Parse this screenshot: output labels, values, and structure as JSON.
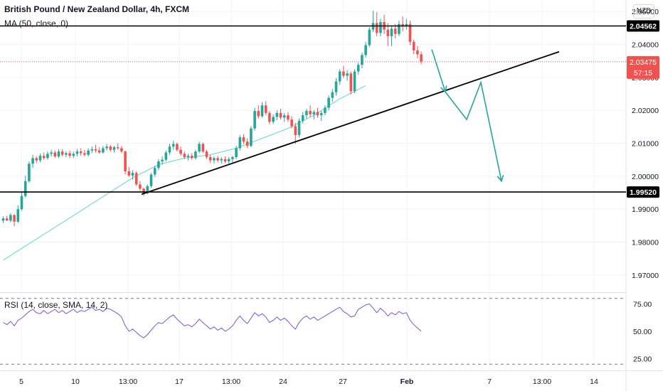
{
  "header": {
    "title": "British Pound / New Zealand Dollar, 4h, FXCM",
    "ma_label": "MA (50, close, 0)",
    "currency": "NZD"
  },
  "rsi": {
    "label": "RSI (14, close, SMA, 14, 2)",
    "ticks": [
      "75.00",
      "50.00",
      "25.00"
    ]
  },
  "chart_data": {
    "type": "candlestick",
    "price_axis": {
      "range": [
        1.965,
        2.0535
      ],
      "ticks": [
        "2.05000",
        "2.04000",
        "2.03000",
        "2.02000",
        "2.01000",
        "2.00000",
        "1.99000",
        "1.98000",
        "1.97000"
      ]
    },
    "time_axis": {
      "labels": [
        "5",
        "10",
        "13:00",
        "17",
        "13:00",
        "24",
        "27",
        "Feb",
        "7",
        "13:00",
        "14"
      ]
    },
    "horizontal_levels": [
      {
        "label": "2.04562",
        "value": 2.04562
      },
      {
        "label": "1.99520",
        "value": 1.9952
      }
    ],
    "current_price": {
      "label": "2.03475",
      "countdown": "57:15",
      "value": 2.03475
    },
    "trend_line": {
      "from": [
        0,
        1.9945
      ],
      "to": [
        130,
        2.0378
      ]
    },
    "projection_arrow": [
      [
        103,
        2.0385
      ],
      [
        107,
        2.0256
      ],
      [
        114,
        2.0172
      ],
      [
        118,
        2.0285
      ],
      [
        124,
        1.9985
      ]
    ],
    "ma_line": [
      [
        0,
        1.9745
      ],
      [
        7,
        1.9795
      ],
      [
        14,
        1.9845
      ],
      [
        21,
        1.9895
      ],
      [
        28,
        1.9945
      ],
      [
        35,
        1.9995
      ],
      [
        42,
        2.0035
      ],
      [
        49,
        2.0055
      ],
      [
        56,
        2.0065
      ],
      [
        63,
        2.0085
      ],
      [
        70,
        2.0115
      ],
      [
        77,
        2.0145
      ],
      [
        84,
        2.0185
      ],
      [
        91,
        2.0235
      ],
      [
        98,
        2.0275
      ]
    ],
    "candles": [
      [
        1.9865,
        1.9878,
        1.9858,
        1.9872
      ],
      [
        1.9872,
        1.988,
        1.9868,
        1.9865
      ],
      [
        1.9865,
        1.9888,
        1.986,
        1.9882
      ],
      [
        1.9882,
        1.9885,
        1.9848,
        1.9862
      ],
      [
        1.9862,
        1.9912,
        1.9858,
        1.99
      ],
      [
        1.99,
        1.9952,
        1.9895,
        1.994
      ],
      [
        1.994,
        2.0002,
        1.9935,
        1.9985
      ],
      [
        1.9985,
        2.0045,
        1.998,
        2.0038
      ],
      [
        2.0038,
        2.0065,
        2.0025,
        2.0055
      ],
      [
        2.0055,
        2.006,
        2.004,
        2.0048
      ],
      [
        2.0048,
        2.0068,
        2.0042,
        2.0062
      ],
      [
        2.0062,
        2.0072,
        2.005,
        2.0055
      ],
      [
        2.0055,
        2.0075,
        2.005,
        2.0068
      ],
      [
        2.0068,
        2.008,
        2.006,
        2.0072
      ],
      [
        2.0072,
        2.0078,
        2.0055,
        2.006
      ],
      [
        2.006,
        2.0082,
        2.0055,
        2.0075
      ],
      [
        2.0075,
        2.0082,
        2.006,
        2.0065
      ],
      [
        2.0065,
        2.0075,
        2.0058,
        2.007
      ],
      [
        2.007,
        2.0078,
        2.0055,
        2.0062
      ],
      [
        2.0062,
        2.0075,
        2.0055,
        2.0068
      ],
      [
        2.0068,
        2.0082,
        2.006,
        2.0075
      ],
      [
        2.0075,
        2.0085,
        2.0062,
        2.007
      ],
      [
        2.007,
        2.008,
        2.006,
        2.0065
      ],
      [
        2.0065,
        2.0085,
        2.006,
        2.0078
      ],
      [
        2.0078,
        2.009,
        2.007,
        2.0082
      ],
      [
        2.0082,
        2.0095,
        2.0072,
        2.0078
      ],
      [
        2.0078,
        2.0088,
        2.0068,
        2.0072
      ],
      [
        2.0072,
        2.0092,
        2.0068,
        2.0085
      ],
      [
        2.0085,
        2.0098,
        2.0078,
        2.009
      ],
      [
        2.009,
        2.0095,
        2.0075,
        2.008
      ],
      [
        2.008,
        2.0092,
        2.0072,
        2.0088
      ],
      [
        2.0088,
        2.01,
        2.008,
        2.0085
      ],
      [
        2.0085,
        2.0092,
        2.007,
        2.0075
      ],
      [
        2.0075,
        2.0078,
        2.0005,
        2.0015
      ],
      [
        2.0015,
        2.0028,
        1.9998,
        2.0002
      ],
      [
        2.0002,
        2.0018,
        1.999,
        2.001
      ],
      [
        2.001,
        2.0015,
        1.997,
        1.9975
      ],
      [
        1.9975,
        1.9985,
        1.9955,
        1.9962
      ],
      [
        1.9962,
        1.9965,
        1.994,
        1.9948
      ],
      [
        1.9948,
        1.9975,
        1.9945,
        1.997
      ],
      [
        1.997,
        2.001,
        1.9965,
        2.0005
      ],
      [
        2.0005,
        2.0032,
        1.9998,
        2.0025
      ],
      [
        2.0025,
        2.0052,
        2.0018,
        2.0045
      ],
      [
        2.0045,
        2.006,
        2.0035,
        2.005
      ],
      [
        2.005,
        2.0078,
        2.0045,
        2.0072
      ],
      [
        2.0072,
        2.0098,
        2.0065,
        2.009
      ],
      [
        2.009,
        2.0108,
        2.008,
        2.0098
      ],
      [
        2.0098,
        2.0102,
        2.0075,
        2.008
      ],
      [
        2.008,
        2.009,
        2.0062,
        2.0068
      ],
      [
        2.0068,
        2.0075,
        2.0052,
        2.0058
      ],
      [
        2.0058,
        2.0068,
        2.0048,
        2.0062
      ],
      [
        2.0062,
        2.007,
        2.005,
        2.0055
      ],
      [
        2.0055,
        2.008,
        2.005,
        2.0075
      ],
      [
        2.0075,
        2.0105,
        2.007,
        2.0098
      ],
      [
        2.0098,
        2.0102,
        2.007,
        2.0075
      ],
      [
        2.0075,
        2.008,
        2.0052,
        2.0058
      ],
      [
        2.0058,
        2.0065,
        2.004,
        2.0048
      ],
      [
        2.0048,
        2.006,
        2.0038,
        2.0055
      ],
      [
        2.0055,
        2.0062,
        2.0042,
        2.0048
      ],
      [
        2.0048,
        2.0058,
        2.0038,
        2.0052
      ],
      [
        2.0052,
        2.006,
        2.004,
        2.0045
      ],
      [
        2.0045,
        2.0058,
        2.0035,
        2.0052
      ],
      [
        2.0052,
        2.0062,
        2.0042,
        2.0058
      ],
      [
        2.0058,
        2.0092,
        2.0052,
        2.0085
      ],
      [
        2.0085,
        2.0125,
        2.0078,
        2.0118
      ],
      [
        2.0118,
        2.0128,
        2.0098,
        2.0105
      ],
      [
        2.0105,
        2.0115,
        2.0085,
        2.0092
      ],
      [
        2.0092,
        2.0152,
        2.0088,
        2.0145
      ],
      [
        2.0145,
        2.0208,
        2.0138,
        2.0198
      ],
      [
        2.0198,
        2.0215,
        2.0175,
        2.0182
      ],
      [
        2.0182,
        2.0225,
        2.0178,
        2.0215
      ],
      [
        2.0215,
        2.0228,
        2.0185,
        2.0192
      ],
      [
        2.0192,
        2.0198,
        2.0158,
        2.0165
      ],
      [
        2.0165,
        2.0188,
        2.0158,
        2.018
      ],
      [
        2.018,
        2.02,
        2.017,
        2.0192
      ],
      [
        2.0192,
        2.0205,
        2.0172,
        2.0178
      ],
      [
        2.0178,
        2.0192,
        2.0165,
        2.0185
      ],
      [
        2.0185,
        2.0195,
        2.0165,
        2.0172
      ],
      [
        2.0172,
        2.0182,
        2.0145,
        2.0152
      ],
      [
        2.0152,
        2.0162,
        2.0098,
        2.0125
      ],
      [
        2.0125,
        2.0175,
        2.0118,
        2.0168
      ],
      [
        2.0168,
        2.0195,
        2.016,
        2.0185
      ],
      [
        2.0185,
        2.0205,
        2.0175,
        2.0198
      ],
      [
        2.0198,
        2.0215,
        2.018,
        2.0188
      ],
      [
        2.0188,
        2.02,
        2.0172,
        2.0195
      ],
      [
        2.0195,
        2.0208,
        2.0178,
        2.0185
      ],
      [
        2.0185,
        2.0198,
        2.0168,
        2.0192
      ],
      [
        2.0192,
        2.0215,
        2.0185,
        2.0208
      ],
      [
        2.0208,
        2.0245,
        2.02,
        2.0238
      ],
      [
        2.0238,
        2.0265,
        2.0225,
        2.0255
      ],
      [
        2.0255,
        2.0298,
        2.0245,
        2.0288
      ],
      [
        2.0288,
        2.0325,
        2.0278,
        2.0318
      ],
      [
        2.0318,
        2.0335,
        2.0298,
        2.0305
      ],
      [
        2.0305,
        2.0322,
        2.029,
        2.0312
      ],
      [
        2.0312,
        2.0318,
        2.0248,
        2.0258
      ],
      [
        2.0258,
        2.0325,
        2.0252,
        2.0318
      ],
      [
        2.0318,
        2.0345,
        2.0308,
        2.0338
      ],
      [
        2.0338,
        2.0375,
        2.0328,
        2.0368
      ],
      [
        2.0368,
        2.0408,
        2.036,
        2.0398
      ],
      [
        2.0398,
        2.0452,
        2.0392,
        2.0445
      ],
      [
        2.0445,
        2.0502,
        2.0438,
        2.0465
      ],
      [
        2.0465,
        2.0498,
        2.0425,
        2.0435
      ],
      [
        2.0435,
        2.0478,
        2.0425,
        2.0468
      ],
      [
        2.0468,
        2.049,
        2.0432,
        2.0445
      ],
      [
        2.0445,
        2.0465,
        2.0395,
        2.0425
      ],
      [
        2.0425,
        2.0455,
        2.0395,
        2.0448
      ],
      [
        2.0448,
        2.0462,
        2.0418,
        2.0432
      ],
      [
        2.0432,
        2.0472,
        2.0425,
        2.0462
      ],
      [
        2.0462,
        2.0485,
        2.044,
        2.0455
      ],
      [
        2.0455,
        2.0478,
        2.0445,
        2.0462
      ],
      [
        2.0462,
        2.0472,
        2.0398,
        2.0408
      ],
      [
        2.0408,
        2.0415,
        2.037,
        2.0382
      ],
      [
        2.0382,
        2.0395,
        2.0358,
        2.037
      ],
      [
        2.037,
        2.0378,
        2.034,
        2.0348
      ]
    ],
    "rsi_axis": {
      "range": [
        15,
        85
      ],
      "levels": [
        80,
        20
      ]
    },
    "rsi_values": [
      58,
      56,
      59,
      55,
      60,
      62,
      65,
      68,
      70,
      67,
      66,
      69,
      66,
      68,
      70,
      67,
      69,
      66,
      68,
      70,
      67,
      69,
      68,
      70,
      72,
      69,
      70,
      68,
      71,
      70,
      68,
      66,
      63,
      55,
      50,
      52,
      49,
      46,
      44,
      47,
      51,
      55,
      58,
      57,
      60,
      63,
      65,
      61,
      58,
      55,
      56,
      54,
      57,
      61,
      58,
      55,
      52,
      54,
      51,
      53,
      50,
      52,
      55,
      60,
      64,
      60,
      57,
      62,
      67,
      64,
      66,
      63,
      58,
      60,
      63,
      60,
      62,
      59,
      55,
      52,
      58,
      62,
      64,
      61,
      63,
      60,
      62,
      64,
      66,
      68,
      70,
      72,
      68,
      66,
      63,
      64,
      70,
      72,
      74,
      75,
      71,
      67,
      71,
      68,
      64,
      67,
      65,
      68,
      66,
      67,
      60,
      56,
      53,
      50
    ]
  }
}
